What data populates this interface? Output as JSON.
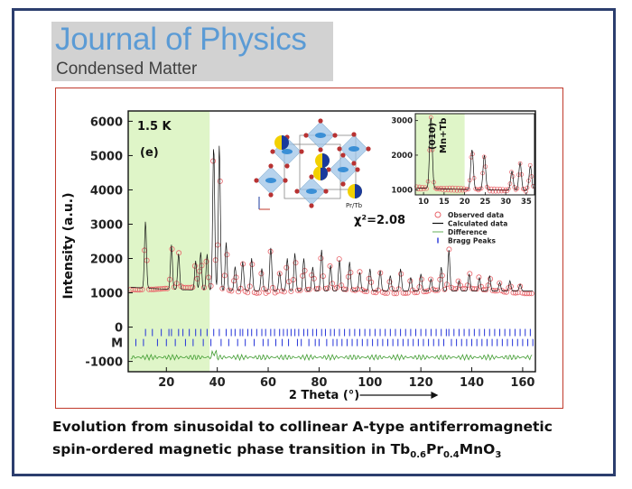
{
  "journal": {
    "name": "Journal of Physics",
    "subtitle": "Condensed Matter"
  },
  "caption": {
    "line1": "Evolution from sinusoidal to collinear A-type antiferromagnetic",
    "line2_prefix": "spin-ordered magnetic phase transition in Tb",
    "sub1": "0.6",
    "mid1": "Pr",
    "sub2": "0.4",
    "mid2": "MnO",
    "sub3": "3"
  },
  "colors": {
    "frame": "#2c3e6e",
    "figure_border": "#c0392b",
    "highlight": "#dff5c8",
    "observed": "#e8646a",
    "calculated": "#111111",
    "difference": "#3f9b2f",
    "bragg": "#2433d8",
    "journal_blue": "#5b9bd5"
  },
  "chart_data": {
    "type": "line",
    "title": "",
    "xlabel": "2 Theta (°)",
    "ylabel": "Intensity (a.u.)",
    "xlim": [
      5,
      165
    ],
    "ylim": [
      -1300,
      6300
    ],
    "x_ticks": [
      20,
      40,
      60,
      80,
      100,
      120,
      140,
      160
    ],
    "y_ticks": [
      -1000,
      0,
      1000,
      2000,
      3000,
      4000,
      5000,
      6000
    ],
    "y_tick_labels": [
      "-1000",
      "0",
      "1000",
      "2000",
      "3000",
      "4000",
      "5000",
      "6000"
    ],
    "highlight_range": [
      5,
      37
    ],
    "temperature_label": "1.5 K",
    "panel_label": "(e)",
    "chi_squared": "χ²=2.08",
    "bragg_row_labels": [
      "M"
    ],
    "baseline": 1050,
    "peaks": [
      {
        "x": 11.8,
        "y": 3000
      },
      {
        "x": 22.0,
        "y": 2350
      },
      {
        "x": 24.8,
        "y": 2100
      },
      {
        "x": 31.5,
        "y": 1900
      },
      {
        "x": 33.5,
        "y": 2150
      },
      {
        "x": 36.0,
        "y": 2100
      },
      {
        "x": 38.6,
        "y": 5300
      },
      {
        "x": 40.8,
        "y": 5300
      },
      {
        "x": 43.5,
        "y": 2450
      },
      {
        "x": 47.0,
        "y": 1750
      },
      {
        "x": 50.0,
        "y": 1900
      },
      {
        "x": 53.5,
        "y": 2000
      },
      {
        "x": 57.5,
        "y": 1700
      },
      {
        "x": 61.0,
        "y": 2300
      },
      {
        "x": 64.5,
        "y": 1600
      },
      {
        "x": 67.5,
        "y": 2000
      },
      {
        "x": 70.5,
        "y": 2150
      },
      {
        "x": 74.0,
        "y": 2000
      },
      {
        "x": 77.5,
        "y": 1750
      },
      {
        "x": 81.0,
        "y": 2250
      },
      {
        "x": 84.5,
        "y": 1800
      },
      {
        "x": 88.0,
        "y": 1950
      },
      {
        "x": 92.0,
        "y": 1900
      },
      {
        "x": 96.0,
        "y": 1600
      },
      {
        "x": 100.0,
        "y": 1700
      },
      {
        "x": 104.0,
        "y": 1650
      },
      {
        "x": 108.0,
        "y": 1500
      },
      {
        "x": 112.0,
        "y": 1700
      },
      {
        "x": 116.0,
        "y": 1450
      },
      {
        "x": 120.0,
        "y": 1550
      },
      {
        "x": 124.0,
        "y": 1400
      },
      {
        "x": 128.0,
        "y": 1750
      },
      {
        "x": 131.0,
        "y": 2250
      },
      {
        "x": 135.0,
        "y": 1350
      },
      {
        "x": 139.0,
        "y": 1550
      },
      {
        "x": 143.0,
        "y": 1450
      },
      {
        "x": 147.0,
        "y": 1500
      },
      {
        "x": 151.0,
        "y": 1300
      },
      {
        "x": 155.0,
        "y": 1350
      },
      {
        "x": 159.0,
        "y": 1250
      }
    ],
    "bragg_row1": [
      11.8,
      14.5,
      18.0,
      21.0,
      22.0,
      24.8,
      26.5,
      29.0,
      31.5,
      33.5,
      36.0,
      38.6,
      40.8,
      43.5,
      45.5,
      47.0,
      49.0,
      50.0,
      52.0,
      53.5,
      55.5,
      57.5,
      59.0,
      61.0,
      62.5,
      64.5,
      66.0,
      67.5,
      69.0,
      70.5,
      72.0,
      74.0,
      75.5,
      77.5,
      79.0,
      81.0,
      82.5,
      84.5,
      86.0,
      88.0,
      90.0,
      92.0,
      94.0,
      96.0,
      98.0,
      100.0,
      102.0,
      104.0,
      106.0,
      108.0,
      110.0,
      112.0,
      114.0,
      116.0,
      118.0,
      120.0,
      122.0,
      124.0,
      126.0,
      128.0,
      130.0,
      131.0,
      133.0,
      135.0,
      137.0,
      139.0,
      141.0,
      143.0,
      145.0,
      147.0,
      149.0,
      151.0,
      153.0,
      155.0,
      157.0,
      159.0,
      161.0,
      163.0
    ],
    "bragg_row2": [
      8.0,
      11.0,
      16.5,
      20.0,
      23.5,
      27.5,
      30.5,
      34.5,
      37.5,
      41.5,
      44.5,
      48.0,
      51.0,
      54.5,
      58.0,
      60.0,
      63.0,
      65.5,
      68.0,
      71.5,
      73.0,
      76.0,
      78.5,
      80.0,
      83.0,
      85.5,
      87.0,
      89.0,
      91.0,
      93.0,
      95.0,
      97.0,
      99.0,
      101.0,
      103.0,
      105.0,
      107.0,
      109.0,
      111.0,
      113.0,
      115.0,
      117.0,
      119.0,
      121.0,
      123.0,
      125.0,
      127.0,
      129.0,
      132.0,
      134.0,
      136.0,
      138.0,
      140.0,
      142.0,
      144.0,
      146.0,
      148.0,
      150.0,
      152.0,
      154.0,
      156.0,
      158.0,
      160.0,
      162.0,
      164.0
    ],
    "inset": {
      "xlim": [
        8,
        37
      ],
      "ylim": [
        850,
        3200
      ],
      "x_ticks": [
        10,
        15,
        20,
        25,
        30,
        35
      ],
      "y_ticks": [
        1000,
        2000,
        3000
      ],
      "label_line1": "(010)",
      "label_line2": "Mn+Tb",
      "baseline": 950,
      "peaks": [
        {
          "x": 11.8,
          "y": 3000
        },
        {
          "x": 21.8,
          "y": 2100
        },
        {
          "x": 24.8,
          "y": 1950
        },
        {
          "x": 31.5,
          "y": 1500
        },
        {
          "x": 33.5,
          "y": 1750
        },
        {
          "x": 36.0,
          "y": 1650
        }
      ]
    },
    "legend": [
      {
        "label": "Observed data",
        "marker": "circle"
      },
      {
        "label": "Calculated data",
        "marker": "line"
      },
      {
        "label": "Difference",
        "marker": "line-thin"
      },
      {
        "label": "Bragg Peaks",
        "marker": "bar"
      }
    ],
    "structure_label": "Pr/Tb"
  }
}
